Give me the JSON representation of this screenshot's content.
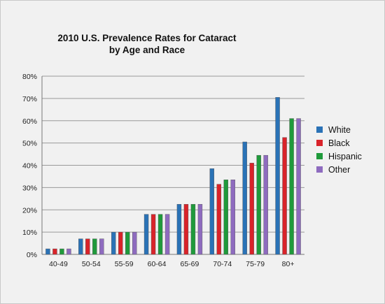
{
  "chart_data": {
    "type": "bar",
    "title_line1": "2010 U.S. Prevalence Rates for Cataract",
    "title_line2": "by Age and Race",
    "categories": [
      "40-49",
      "50-54",
      "55-59",
      "60-64",
      "65-69",
      "70-74",
      "75-79",
      "80+"
    ],
    "series": [
      {
        "name": "White",
        "color": "#2a72b6",
        "values": [
          2.5,
          7,
          10,
          18,
          22.5,
          38.5,
          50.5,
          70.5
        ]
      },
      {
        "name": "Black",
        "color": "#d9232a",
        "values": [
          2.5,
          7,
          10,
          18,
          22.5,
          31.5,
          41,
          52.5
        ]
      },
      {
        "name": "Hispanic",
        "color": "#1f9a3b",
        "values": [
          2.5,
          7,
          10,
          18,
          22.5,
          33.5,
          44.5,
          61
        ]
      },
      {
        "name": "Other",
        "color": "#8e6bbf",
        "values": [
          2.5,
          7,
          10,
          18,
          22.5,
          33.5,
          44.5,
          61
        ]
      }
    ],
    "ylim": [
      0,
      80
    ],
    "yticks": [
      "0%",
      "10%",
      "20%",
      "30%",
      "40%",
      "50%",
      "60%",
      "70%",
      "80%"
    ],
    "grid": true,
    "legend_position": "right"
  }
}
